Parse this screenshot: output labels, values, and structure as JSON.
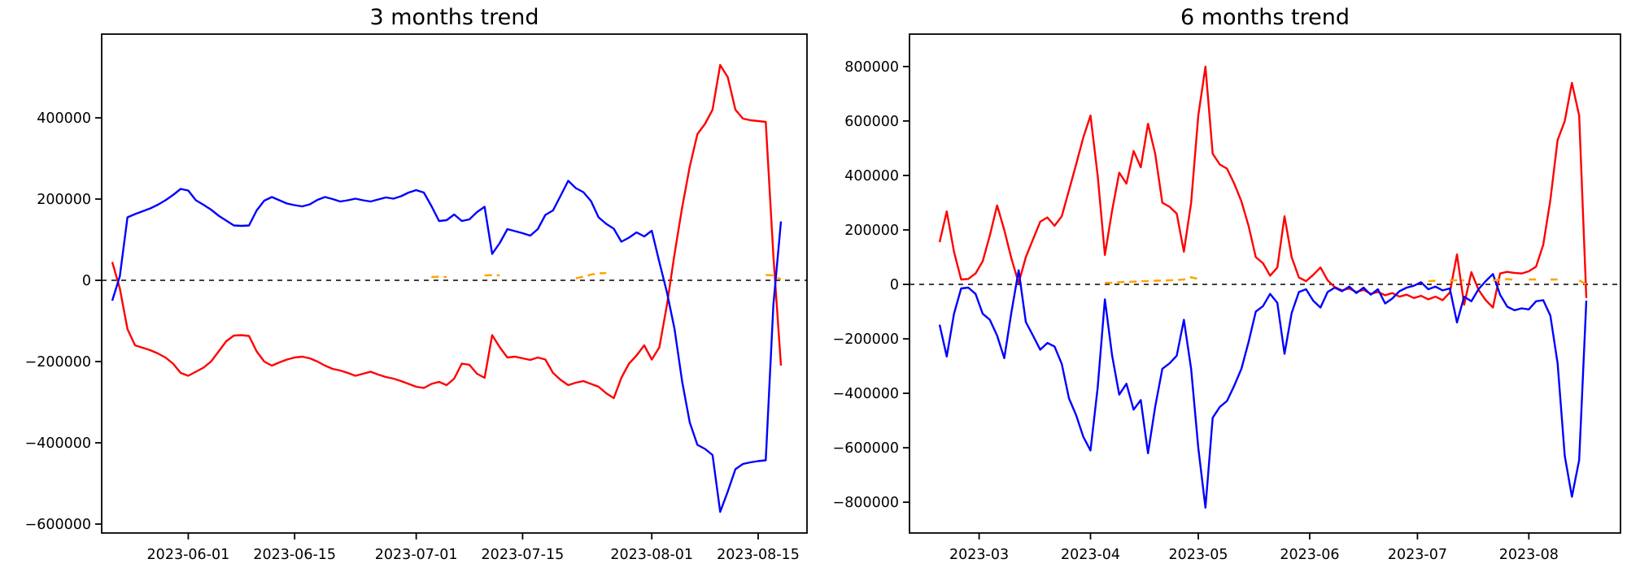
{
  "page": {
    "background": "#ffffff",
    "figure_type": "dual-line-chart"
  },
  "chart_data": [
    {
      "type": "line",
      "title": "3 months trend",
      "xlabel": "",
      "ylabel": "",
      "grid": false,
      "legend": false,
      "zero_line": {
        "style": "dashed",
        "color": "#000000",
        "value": 0
      },
      "x_axis": {
        "start_date": "2023-05-22",
        "step_days": 1,
        "tick_dates": [
          "2023-06-01",
          "2023-06-15",
          "2023-07-01",
          "2023-07-15",
          "2023-08-01",
          "2023-08-15"
        ],
        "tick_labels": [
          "2023-06-01",
          "2023-06-15",
          "2023-07-01",
          "2023-07-15",
          "2023-08-01",
          "2023-08-15"
        ]
      },
      "y_axis": {
        "lim": [
          -622000,
          606000
        ],
        "ticks": [
          400000,
          200000,
          0,
          -200000,
          -400000,
          -600000
        ],
        "tick_labels": [
          "400000",
          "200000",
          "0",
          "−200000",
          "−400000",
          "−600000"
        ]
      },
      "series": [
        {
          "name": "red-line",
          "color": "#ff0000",
          "style": "solid",
          "values": [
            45000,
            -20000,
            -120000,
            -160000,
            -166000,
            -172000,
            -180000,
            -190000,
            -205000,
            -228000,
            -235000,
            -225000,
            -215000,
            -200000,
            -175000,
            -150000,
            -136000,
            -135000,
            -137000,
            -175000,
            -200000,
            -210000,
            -202000,
            -195000,
            -190000,
            -188000,
            -192000,
            -200000,
            -210000,
            -218000,
            -222000,
            -228000,
            -235000,
            -230000,
            -225000,
            -232000,
            -238000,
            -242000,
            -248000,
            -255000,
            -262000,
            -265000,
            -255000,
            -250000,
            -258000,
            -242000,
            -205000,
            -208000,
            -230000,
            -240000,
            -135000,
            -165000,
            -190000,
            -188000,
            -192000,
            -196000,
            -190000,
            -195000,
            -228000,
            -245000,
            -258000,
            -252000,
            -248000,
            -255000,
            -262000,
            -278000,
            -290000,
            -240000,
            -205000,
            -185000,
            -160000,
            -195000,
            -165000,
            -60000,
            65000,
            180000,
            280000,
            360000,
            385000,
            420000,
            530000,
            500000,
            420000,
            398000,
            394000,
            392000,
            390000,
            60000,
            -210000
          ]
        },
        {
          "name": "blue-line",
          "color": "#0000ff",
          "style": "solid",
          "values": [
            -50000,
            10000,
            155000,
            163000,
            170000,
            177000,
            186000,
            197000,
            210000,
            225000,
            221000,
            197000,
            186000,
            174000,
            159000,
            147000,
            135000,
            134000,
            135000,
            172000,
            196000,
            205000,
            197000,
            189000,
            185000,
            182000,
            187000,
            198000,
            205000,
            200000,
            194000,
            197000,
            201000,
            197000,
            194000,
            199000,
            204000,
            201000,
            207000,
            216000,
            222000,
            216000,
            183000,
            146000,
            148000,
            162000,
            146000,
            150000,
            168000,
            181000,
            65000,
            92000,
            126000,
            121000,
            116000,
            110000,
            126000,
            161000,
            172000,
            208000,
            245000,
            227000,
            217000,
            195000,
            155000,
            139000,
            127000,
            95000,
            105000,
            118000,
            108000,
            122000,
            45000,
            -30000,
            -120000,
            -250000,
            -350000,
            -405000,
            -415000,
            -430000,
            -570000,
            -520000,
            -465000,
            -452000,
            -448000,
            -445000,
            -443000,
            -60000,
            145000
          ]
        },
        {
          "name": "orange-dashed-line",
          "color": "#ffa500",
          "style": "dashed",
          "values": [
            null,
            null,
            null,
            null,
            null,
            null,
            null,
            null,
            null,
            null,
            null,
            null,
            null,
            null,
            null,
            null,
            null,
            null,
            null,
            null,
            null,
            null,
            null,
            null,
            null,
            null,
            null,
            null,
            null,
            null,
            null,
            null,
            null,
            null,
            null,
            null,
            null,
            null,
            null,
            null,
            null,
            null,
            8000,
            9000,
            8000,
            null,
            null,
            null,
            null,
            12000,
            13000,
            12000,
            null,
            null,
            null,
            null,
            null,
            null,
            null,
            null,
            null,
            5000,
            9000,
            14000,
            17000,
            18000,
            null,
            null,
            null,
            null,
            null,
            null,
            null,
            null,
            null,
            null,
            null,
            null,
            null,
            null,
            null,
            null,
            null,
            null,
            null,
            null,
            13000,
            12000,
            2000
          ]
        }
      ]
    },
    {
      "type": "line",
      "title": "6 months trend",
      "xlabel": "",
      "ylabel": "",
      "grid": false,
      "legend": false,
      "zero_line": {
        "style": "dashed",
        "color": "#000000",
        "value": 0
      },
      "x_axis": {
        "start_date": "2023-02-18",
        "step_days": 2,
        "tick_dates": [
          "2023-03-01",
          "2023-04-01",
          "2023-05-01",
          "2023-06-01",
          "2023-07-01",
          "2023-08-01"
        ],
        "tick_labels": [
          "2023-03",
          "2023-04",
          "2023-05",
          "2023-06",
          "2023-07",
          "2023-08"
        ]
      },
      "y_axis": {
        "lim": [
          -913000,
          919000
        ],
        "ticks": [
          800000,
          600000,
          400000,
          200000,
          0,
          -200000,
          -400000,
          -600000,
          -800000
        ],
        "tick_labels": [
          "800000",
          "600000",
          "400000",
          "200000",
          "0",
          "−200000",
          "−400000",
          "−600000",
          "−800000"
        ]
      },
      "series": [
        {
          "name": "red-line",
          "color": "#ff0000",
          "style": "solid",
          "values": [
            155000,
            268000,
            120000,
            18000,
            20000,
            40000,
            85000,
            180000,
            290000,
            200000,
            95000,
            5000,
            100000,
            165000,
            230000,
            246000,
            215000,
            250000,
            345000,
            440000,
            540000,
            620000,
            400000,
            108000,
            270000,
            410000,
            370000,
            490000,
            430000,
            590000,
            480000,
            300000,
            285000,
            260000,
            120000,
            300000,
            620000,
            800000,
            480000,
            440000,
            425000,
            370000,
            305000,
            215000,
            100000,
            78000,
            32000,
            62000,
            250000,
            100000,
            25000,
            12000,
            35000,
            62000,
            15000,
            -10000,
            -22000,
            -15000,
            -28000,
            -20000,
            -35000,
            -28000,
            -40000,
            -32000,
            -45000,
            -38000,
            -50000,
            -42000,
            -55000,
            -45000,
            -58000,
            -30000,
            110000,
            -75000,
            45000,
            -20000,
            -58000,
            -85000,
            40000,
            46000,
            42000,
            40000,
            48000,
            65000,
            145000,
            310000,
            530000,
            600000,
            740000,
            620000,
            -50000
          ]
        },
        {
          "name": "blue-line",
          "color": "#0000ff",
          "style": "solid",
          "values": [
            -148000,
            -265000,
            -108000,
            -15000,
            -12000,
            -35000,
            -108000,
            -130000,
            -188000,
            -271000,
            -102000,
            52000,
            -138000,
            -188000,
            -240000,
            -215000,
            -228000,
            -292000,
            -418000,
            -480000,
            -560000,
            -610000,
            -380000,
            -55000,
            -260000,
            -405000,
            -365000,
            -460000,
            -425000,
            -620000,
            -450000,
            -310000,
            -290000,
            -262000,
            -130000,
            -310000,
            -600000,
            -820000,
            -490000,
            -450000,
            -428000,
            -372000,
            -310000,
            -212000,
            -100000,
            -80000,
            -35000,
            -68000,
            -255000,
            -105000,
            -28000,
            -18000,
            -60000,
            -85000,
            -28000,
            -12000,
            -25000,
            -8000,
            -32000,
            -12000,
            -38000,
            -18000,
            -70000,
            -52000,
            -25000,
            -12000,
            -5000,
            8000,
            -18000,
            -8000,
            -22000,
            -15000,
            -140000,
            -45000,
            -62000,
            -18000,
            12000,
            38000,
            -38000,
            -82000,
            -95000,
            -88000,
            -92000,
            -62000,
            -58000,
            -115000,
            -290000,
            -630000,
            -780000,
            -645000,
            -60000
          ]
        },
        {
          "name": "orange-dashed-line",
          "color": "#ffa500",
          "style": "dashed",
          "values": [
            null,
            null,
            null,
            null,
            null,
            null,
            null,
            null,
            null,
            null,
            null,
            null,
            null,
            null,
            null,
            null,
            null,
            null,
            null,
            null,
            null,
            null,
            null,
            5000,
            6000,
            8000,
            9000,
            10000,
            12000,
            12000,
            13000,
            14000,
            15000,
            16000,
            18000,
            26000,
            20000,
            null,
            null,
            null,
            null,
            null,
            null,
            null,
            null,
            null,
            null,
            null,
            null,
            null,
            null,
            null,
            null,
            null,
            null,
            null,
            null,
            null,
            null,
            null,
            null,
            null,
            null,
            null,
            null,
            null,
            null,
            null,
            12000,
            13000,
            null,
            15000,
            15000,
            15000,
            null,
            null,
            null,
            15000,
            17000,
            19000,
            17000,
            null,
            18000,
            18000,
            null,
            18000,
            18000,
            null,
            null,
            15000,
            0
          ]
        }
      ]
    }
  ]
}
